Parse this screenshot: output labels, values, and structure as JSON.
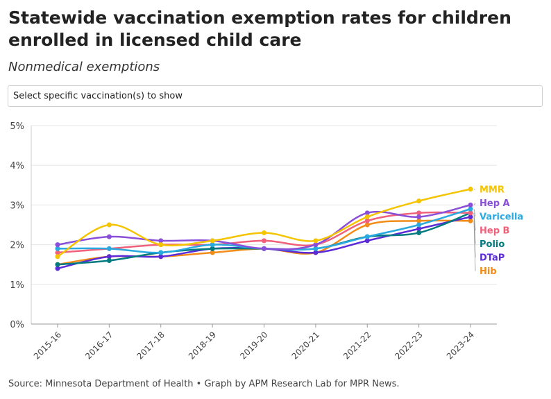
{
  "title": "Statewide vaccination exemption rates for children enrolled in licensed child care",
  "subtitle": "Nonmedical exemptions",
  "selector": {
    "label": "Select specific vaccination(s) to show"
  },
  "source": "Source: Minnesota Department of Health • Graph by APM Research Lab for MPR News.",
  "chart_data": {
    "type": "line",
    "categories": [
      "2015-16",
      "2016-17",
      "2017-18",
      "2018-19",
      "2019-20",
      "2020-21",
      "2021-22",
      "2022-23",
      "2023-24"
    ],
    "ylim": [
      0,
      5
    ],
    "yticks": [
      0,
      1,
      2,
      3,
      4,
      5
    ],
    "ytick_labels": [
      "0%",
      "1%",
      "2%",
      "3%",
      "4%",
      "5%"
    ],
    "grid": true,
    "legend": "direct labels at right end of lines",
    "series": [
      {
        "name": "MMR",
        "color": "#f5c400",
        "values": [
          1.7,
          2.5,
          2.0,
          2.1,
          2.3,
          2.1,
          2.7,
          3.1,
          3.4
        ]
      },
      {
        "name": "Hep A",
        "color": "#8a4fd9",
        "values": [
          2.0,
          2.2,
          2.1,
          2.1,
          1.9,
          2.0,
          2.8,
          2.7,
          3.0
        ]
      },
      {
        "name": "Varicella",
        "color": "#29a9e0",
        "values": [
          1.9,
          1.9,
          1.8,
          2.0,
          1.9,
          1.9,
          2.2,
          2.5,
          2.9
        ]
      },
      {
        "name": "Hep B",
        "color": "#f0607a",
        "values": [
          1.8,
          1.9,
          2.0,
          2.0,
          2.1,
          2.0,
          2.6,
          2.8,
          2.8
        ]
      },
      {
        "name": "Polio",
        "color": "#007b7f",
        "values": [
          1.5,
          1.6,
          1.8,
          1.9,
          1.9,
          1.9,
          2.2,
          2.3,
          2.8
        ]
      },
      {
        "name": "DTaP",
        "color": "#5a2bd6",
        "values": [
          1.4,
          1.7,
          1.7,
          1.9,
          1.9,
          1.8,
          2.1,
          2.4,
          2.7
        ]
      },
      {
        "name": "Hib",
        "color": "#f28c18",
        "values": [
          1.5,
          1.7,
          1.7,
          1.8,
          1.9,
          1.8,
          2.5,
          2.6,
          2.6
        ]
      }
    ]
  }
}
